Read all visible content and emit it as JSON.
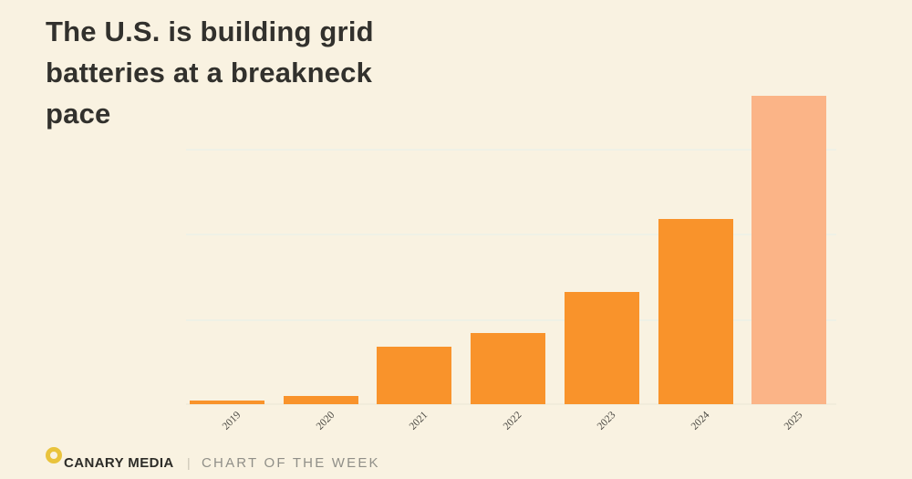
{
  "page": {
    "background_color": "#f9f2e1",
    "title_color": "#32312d"
  },
  "title": {
    "text": "The U.S. is building grid batteries at a breakneck pace"
  },
  "chart_data": {
    "type": "bar",
    "title": "The U.S. is building grid batteries at a breakneck pace",
    "categories": [
      "2019",
      "2020",
      "2021",
      "2022",
      "2023",
      "2024",
      "2025"
    ],
    "values": [
      0.2,
      0.5,
      3.4,
      4.2,
      6.6,
      10.9,
      18.1
    ],
    "projected_flags": [
      false,
      false,
      false,
      false,
      false,
      false,
      true
    ],
    "xlabel": "",
    "ylabel": "",
    "ylim": [
      0,
      18.6
    ],
    "gridline_values": [
      5,
      10,
      15
    ],
    "grid": "horizontal, unlabeled",
    "legend_position": "none",
    "bar_color": "#f9932b",
    "projected_bar_color": "#fbb487",
    "gridline_color": "#eff1e6",
    "baseline_color": "#f1ecdb",
    "tick_label_color": "#4a4842"
  },
  "footer": {
    "brand": "CANARY MEDIA",
    "divider": "|",
    "tagline": "CHART OF THE WEEK",
    "logo_color": "#e9c33c"
  }
}
